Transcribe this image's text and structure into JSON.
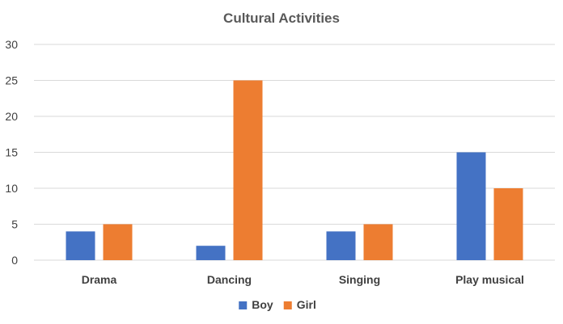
{
  "chart_data": {
    "type": "bar",
    "title": "Cultural Activities",
    "categories": [
      "Drama",
      "Dancing",
      "Singing",
      "Play musical"
    ],
    "series": [
      {
        "name": "Boy",
        "values": [
          4,
          2,
          4,
          15
        ],
        "color": "#4472c4"
      },
      {
        "name": "Girl",
        "values": [
          5,
          25,
          5,
          10
        ],
        "color": "#ed7d31"
      }
    ],
    "ylim": [
      0,
      30
    ],
    "yticks": [
      0,
      5,
      10,
      15,
      20,
      25,
      30
    ],
    "grid": true,
    "legend_position": "bottom"
  }
}
